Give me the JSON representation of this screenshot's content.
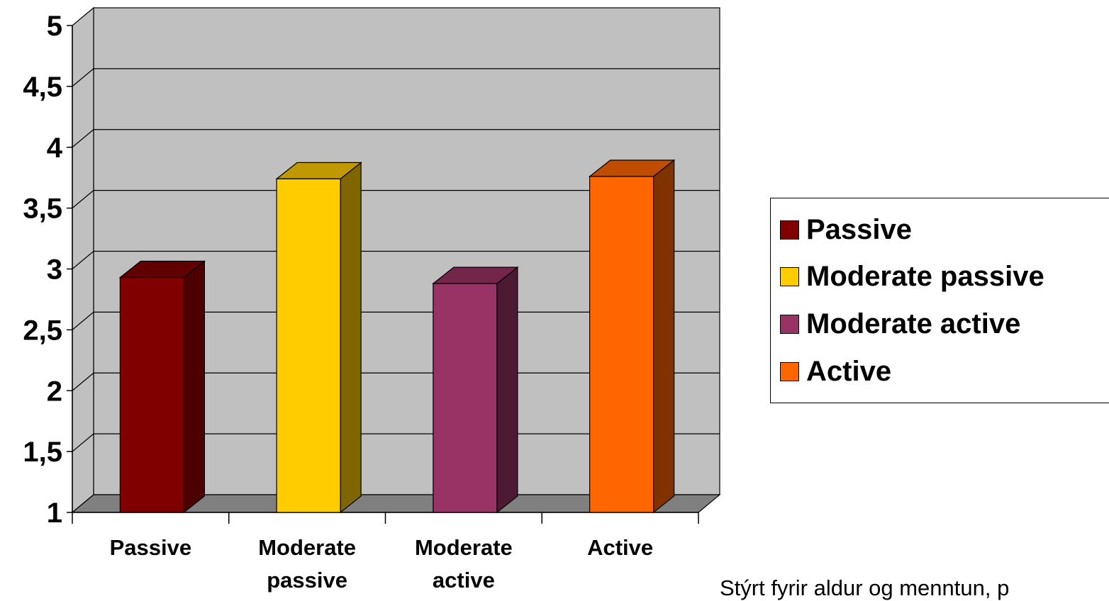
{
  "chart_data": {
    "type": "bar",
    "style": "3d-column",
    "categories": [
      "Passive",
      "Moderate passive",
      "Moderate active",
      "Active"
    ],
    "category_labels": [
      [
        "Passive"
      ],
      [
        "Moderate",
        "passive"
      ],
      [
        "Moderate",
        "active"
      ],
      [
        "Active"
      ]
    ],
    "values": [
      2.93,
      3.74,
      2.88,
      3.76
    ],
    "colors": [
      "#800000",
      "#FFCC00",
      "#993366",
      "#FF6600"
    ],
    "side_colors": [
      "#4D0000",
      "#806600",
      "#4D1A33",
      "#803300"
    ],
    "top_colors": [
      "#600000",
      "#C09900",
      "#732649",
      "#C04C00"
    ],
    "ylim": [
      1,
      5
    ],
    "yticks": [
      "1",
      "1,5",
      "2",
      "2,5",
      "3",
      "3,5",
      "4",
      "4,5",
      "5"
    ],
    "grid": true,
    "wall_color": "#C0C0C0",
    "floor_color": "#808080",
    "legend_position": "right",
    "title": "",
    "xlabel": "",
    "ylabel": ""
  },
  "legend": [
    {
      "label": "Passive",
      "color": "#800000"
    },
    {
      "label": "Moderate passive",
      "color": "#FFCC00"
    },
    {
      "label": "Moderate active",
      "color": "#993366"
    },
    {
      "label": "Active",
      "color": "#FF6600"
    }
  ],
  "footnote": "Stýrt fyrir aldur og menntun, p"
}
